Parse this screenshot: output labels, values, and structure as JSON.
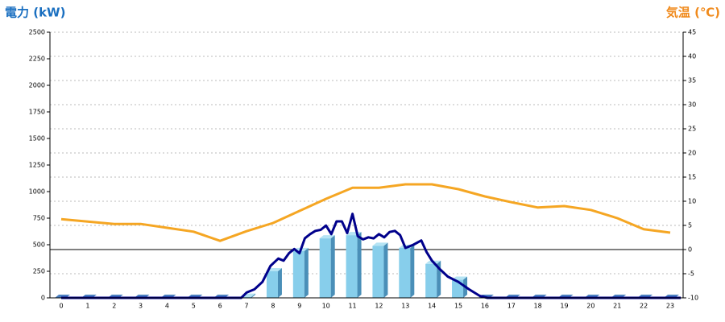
{
  "chart_data": {
    "type": "combo",
    "y_title": "電力 (kW)",
    "y2_title": "気温 (℃)",
    "categories": [
      "0",
      "1",
      "2",
      "3",
      "4",
      "5",
      "6",
      "7",
      "8",
      "9",
      "10",
      "11",
      "12",
      "13",
      "14",
      "15",
      "16",
      "17",
      "18",
      "19",
      "20",
      "21",
      "22",
      "23"
    ],
    "ylim": [
      0,
      2500
    ],
    "yticks": [
      0,
      250,
      500,
      750,
      1000,
      1250,
      1500,
      1750,
      2000,
      2250,
      2500
    ],
    "y2lim": [
      -10,
      45
    ],
    "y2ticks": [
      -10,
      -5,
      0,
      5,
      10,
      15,
      20,
      25,
      30,
      35,
      40,
      45
    ],
    "grid": true,
    "series": [
      {
        "type": "bar",
        "color": "#87ceeb",
        "values": [
          0,
          0,
          0,
          0,
          0,
          0,
          0,
          10,
          250,
          440,
          560,
          590,
          490,
          470,
          320,
          170,
          0,
          0,
          0,
          0,
          0,
          0,
          0,
          0
        ]
      },
      {
        "type": "line",
        "axis": "y2",
        "color": "#f5a623",
        "values": [
          6.3,
          5.8,
          5.3,
          5.3,
          4.5,
          3.7,
          1.8,
          3.8,
          5.5,
          8,
          10.5,
          12.8,
          12.8,
          13.5,
          13.5,
          12.5,
          11,
          9.8,
          8.7,
          9,
          8.2,
          6.5,
          4.2,
          3.5
        ]
      },
      {
        "type": "line",
        "color": "#00008b",
        "x": [
          0,
          6.8,
          7,
          7.3,
          7.6,
          7.9,
          8.2,
          8.4,
          8.6,
          8.8,
          9,
          9.2,
          9.4,
          9.6,
          9.8,
          10,
          10.2,
          10.4,
          10.6,
          10.8,
          11,
          11.2,
          11.4,
          11.6,
          11.8,
          12,
          12.2,
          12.4,
          12.6,
          12.8,
          13,
          13.3,
          13.6,
          13.8,
          14,
          14.3,
          14.6,
          15,
          15.4,
          15.8,
          16.1,
          23.4
        ],
        "values": [
          0,
          0,
          50,
          80,
          150,
          300,
          370,
          350,
          420,
          460,
          420,
          560,
          600,
          630,
          640,
          680,
          600,
          720,
          720,
          610,
          790,
          580,
          550,
          570,
          560,
          600,
          570,
          620,
          630,
          590,
          470,
          500,
          540,
          430,
          350,
          270,
          200,
          150,
          80,
          20,
          0,
          0
        ]
      }
    ]
  }
}
